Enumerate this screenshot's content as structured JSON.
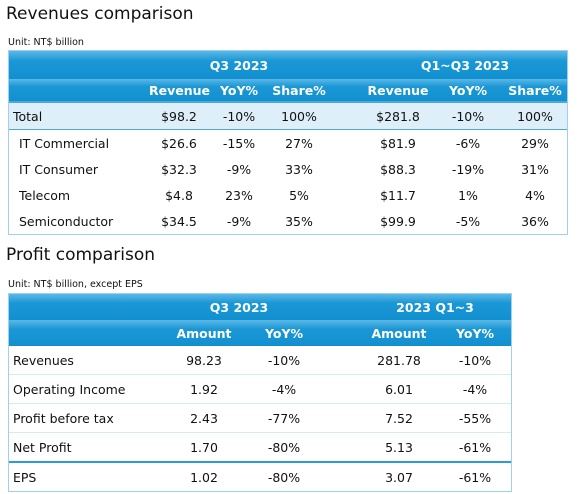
{
  "revenues": {
    "title": "Revenues comparison",
    "unit": "Unit: NT$ billion",
    "groups": [
      "Q3 2023",
      "Q1~Q3 2023"
    ],
    "columns": [
      "Revenue",
      "YoY%",
      "Share%",
      "Revenue",
      "YoY%",
      "Share%"
    ],
    "rows": [
      [
        "Total",
        "$98.2",
        "-10%",
        "100%",
        "$281.8",
        "-10%",
        "100%"
      ],
      [
        "IT Commercial",
        "$26.6",
        "-15%",
        "27%",
        "$81.9",
        "-6%",
        "29%"
      ],
      [
        "IT Consumer",
        "$32.3",
        "-9%",
        "33%",
        "$88.3",
        "-19%",
        "31%"
      ],
      [
        "Telecom",
        "$4.8",
        "23%",
        "5%",
        "$11.7",
        "1%",
        "4%"
      ],
      [
        "Semiconductor",
        "$34.5",
        "-9%",
        "35%",
        "$99.9",
        "-5%",
        "36%"
      ]
    ]
  },
  "profit": {
    "title": "Profit comparison",
    "unit": "Unit: NT$ billion, except EPS",
    "groups": [
      "Q3 2023",
      "2023 Q1~3"
    ],
    "columns": [
      "Amount",
      "YoY%",
      "Amount",
      "YoY%"
    ],
    "rows": [
      [
        "Revenues",
        "98.23",
        "-10%",
        "281.78",
        "-10%"
      ],
      [
        "Operating Income",
        "1.92",
        "-4%",
        "6.01",
        "-4%"
      ],
      [
        "Profit before tax",
        "2.43",
        "-77%",
        "7.52",
        "-55%"
      ],
      [
        "Net Profit",
        "1.70",
        "-80%",
        "5.13",
        "-61%"
      ],
      [
        "EPS",
        "1.02",
        "-80%",
        "3.07",
        "-61%"
      ]
    ]
  }
}
